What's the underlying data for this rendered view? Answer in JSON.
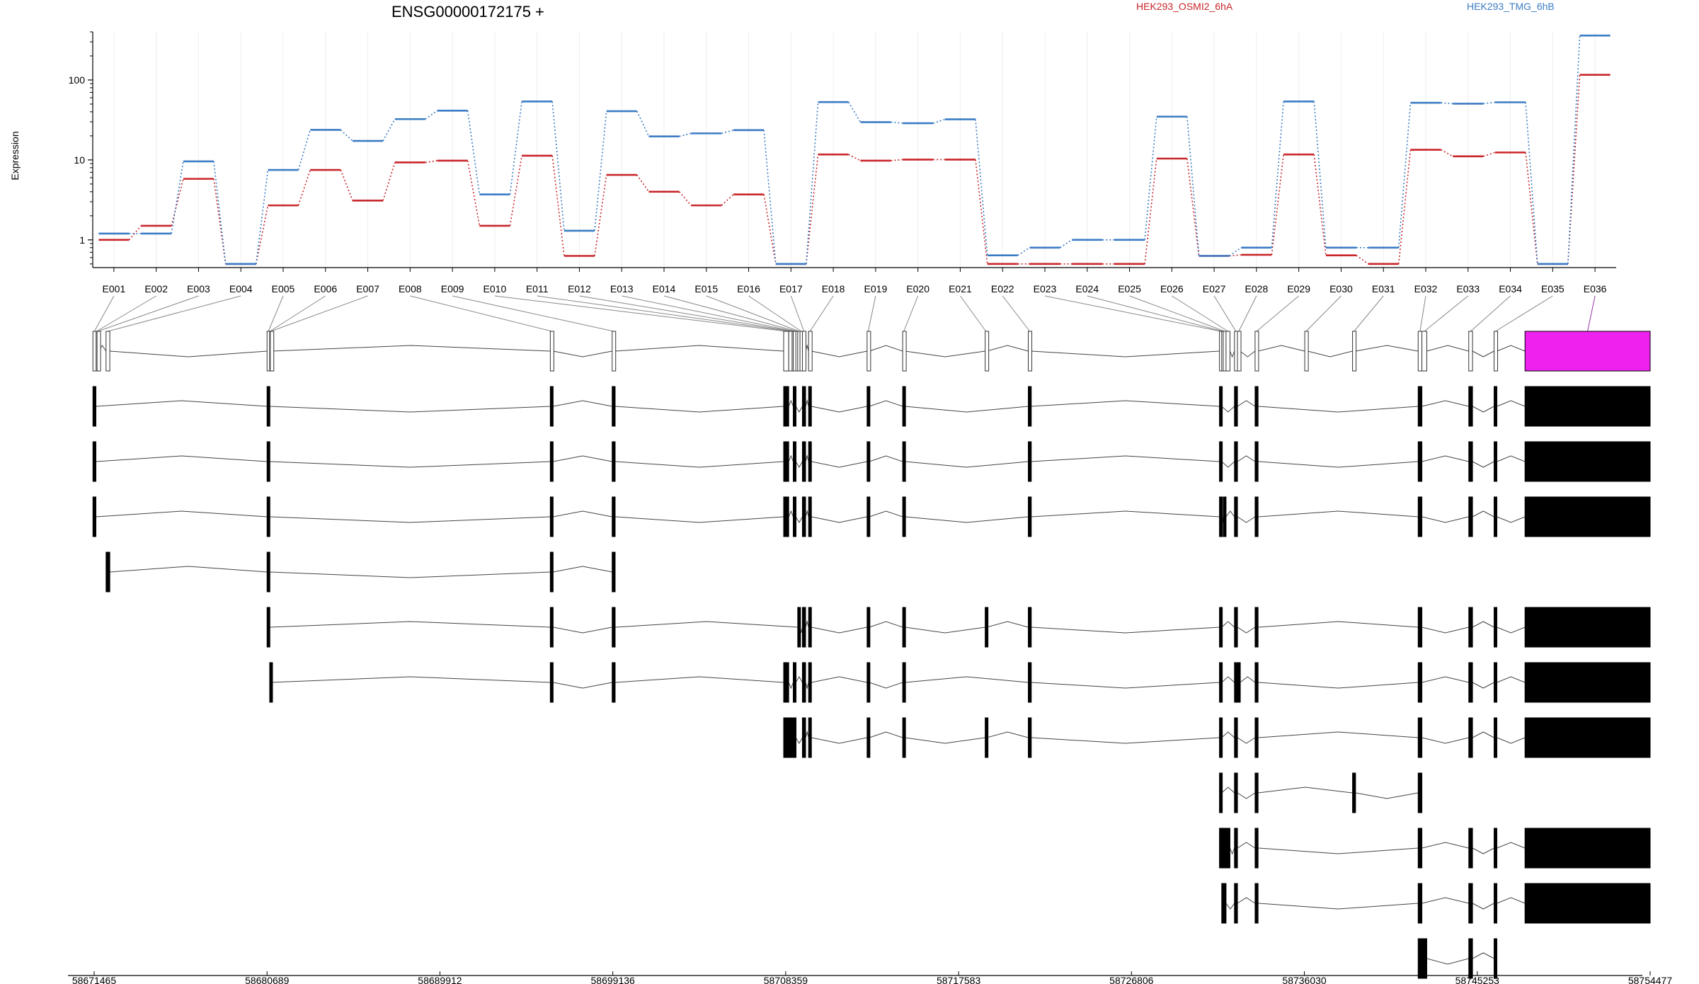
{
  "chart_data": {
    "type": "line",
    "title": "ENSG00000172175 +",
    "ylabel": "Expression",
    "yscale": "log",
    "ylim": [
      0.45,
      400
    ],
    "yticks": [
      1,
      10,
      100
    ],
    "ytick_labels": [
      "1",
      "10",
      "100"
    ],
    "grid": "vertical",
    "legend_placement": "top-right",
    "categories": [
      "E001",
      "E002",
      "E003",
      "E004",
      "E005",
      "E006",
      "E007",
      "E008",
      "E009",
      "E010",
      "E011",
      "E012",
      "E013",
      "E014",
      "E015",
      "E016",
      "E017",
      "E018",
      "E019",
      "E020",
      "E021",
      "E022",
      "E023",
      "E024",
      "E025",
      "E026",
      "E027",
      "E028",
      "E029",
      "E030",
      "E031",
      "E032",
      "E033",
      "E034",
      "E035",
      "E036"
    ],
    "series": [
      {
        "name": "HEK293_OSMI2_6hA",
        "color": "#c8262b",
        "values": [
          1.0,
          1.5,
          5.8,
          0.5,
          2.7,
          7.5,
          3.1,
          9.3,
          9.8,
          1.5,
          11.3,
          0.63,
          6.5,
          4.0,
          2.7,
          3.7,
          0.5,
          11.7,
          9.8,
          10.1,
          10.1,
          0.5,
          0.5,
          0.5,
          0.5,
          10.4,
          0.63,
          0.65,
          11.7,
          0.64,
          0.5,
          13.4,
          11.1,
          12.4,
          0.5,
          116
        ]
      },
      {
        "name": "HEK293_TMG_6hB",
        "color": "#3b7cc4",
        "values": [
          1.2,
          1.2,
          9.6,
          0.5,
          7.5,
          23.8,
          17.3,
          32.4,
          41.3,
          3.7,
          53.9,
          1.3,
          40.7,
          19.7,
          21.5,
          23.6,
          0.5,
          52.9,
          29.7,
          28.8,
          32.2,
          0.64,
          0.8,
          1.0,
          1.0,
          34.8,
          0.63,
          0.8,
          53.9,
          0.8,
          0.8,
          51.9,
          50.6,
          52.6,
          0.5,
          360
        ]
      }
    ]
  },
  "gene_model": {
    "highlight_color": "#ee22ee",
    "coordinate_ticks": [
      "58671465",
      "58680689",
      "58689912",
      "58699136",
      "58708359",
      "58717583",
      "58726806",
      "58736030",
      "58745253",
      "58754477"
    ],
    "highlighted_exon": "E036"
  }
}
